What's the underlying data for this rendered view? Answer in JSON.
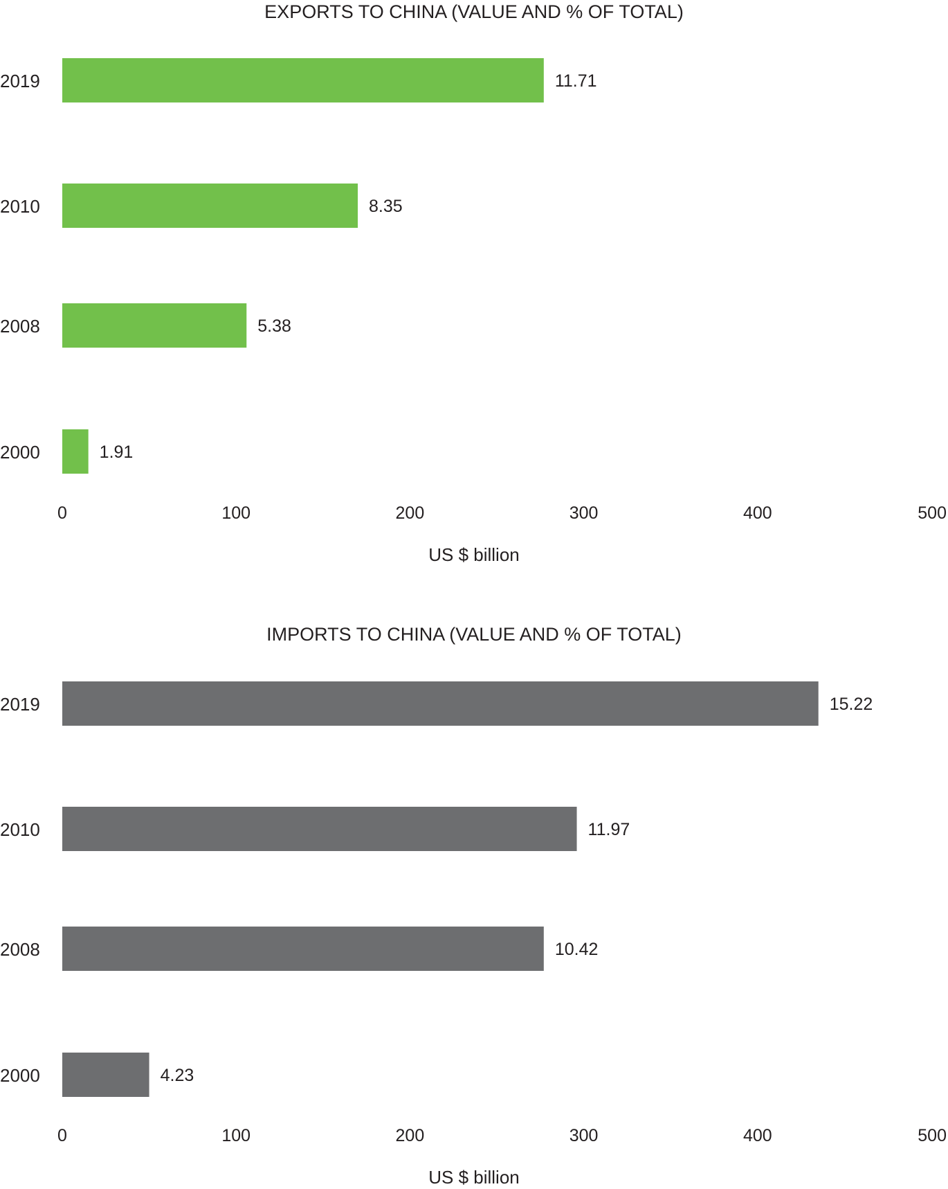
{
  "chart_data": [
    {
      "type": "bar",
      "orientation": "horizontal",
      "title": "EXPORTS TO CHINA (VALUE AND % OF TOTAL)",
      "xlabel": "US $ billion",
      "ylabel": "",
      "categories": [
        "2019",
        "2010",
        "2008",
        "2000"
      ],
      "values": [
        277,
        170,
        106,
        15
      ],
      "data_labels": [
        "11.71",
        "8.35",
        "5.38",
        "1.91"
      ],
      "xlim": [
        0,
        500
      ],
      "xticks": [
        "0",
        "100",
        "200",
        "300",
        "400",
        "500"
      ],
      "grid": false,
      "color": "#72c04b"
    },
    {
      "type": "bar",
      "orientation": "horizontal",
      "title": "IMPORTS TO CHINA (VALUE AND % OF TOTAL)",
      "xlabel": "US $ billion",
      "ylabel": "",
      "categories": [
        "2019",
        "2010",
        "2008",
        "2000"
      ],
      "values": [
        435,
        296,
        277,
        50
      ],
      "data_labels": [
        "15.22",
        "11.97",
        "10.42",
        "4.23"
      ],
      "xlim": [
        0,
        500
      ],
      "xticks": [
        "0",
        "100",
        "200",
        "300",
        "400",
        "500"
      ],
      "grid": false,
      "color": "#6d6e70"
    }
  ]
}
